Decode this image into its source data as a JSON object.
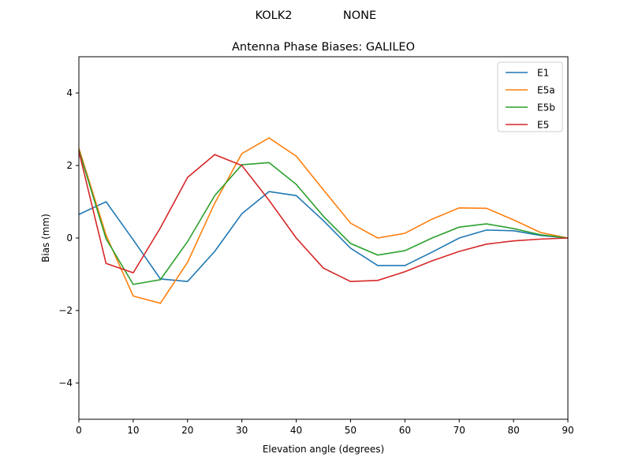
{
  "suptitle": {
    "station": "KOLK2",
    "radome": "NONE"
  },
  "chart_data": {
    "type": "line",
    "title": "Antenna Phase Biases: GALILEO",
    "xlabel": "Elevation angle (degrees)",
    "ylabel": "Bias (mm)",
    "xlim": [
      0,
      90
    ],
    "ylim": [
      -5,
      5
    ],
    "xticks": [
      "0",
      "10",
      "20",
      "30",
      "40",
      "50",
      "60",
      "70",
      "80",
      "90"
    ],
    "yticks": [
      "−4",
      "−2",
      "0",
      "2",
      "4"
    ],
    "grid": false,
    "legend_placement": "top-right",
    "x": [
      0,
      5,
      10,
      15,
      20,
      25,
      30,
      35,
      40,
      45,
      50,
      55,
      60,
      65,
      70,
      75,
      80,
      85,
      90
    ],
    "series": [
      {
        "name": "E1",
        "color": "#1f77b4",
        "values": [
          0.65,
          1.0,
          -0.05,
          -1.13,
          -1.2,
          -0.37,
          0.67,
          1.28,
          1.17,
          0.48,
          -0.28,
          -0.76,
          -0.76,
          -0.39,
          0.0,
          0.22,
          0.2,
          0.07,
          0.0
        ]
      },
      {
        "name": "E5a",
        "color": "#ff7f0e",
        "values": [
          2.48,
          0.08,
          -1.6,
          -1.8,
          -0.67,
          0.96,
          2.33,
          2.76,
          2.26,
          1.33,
          0.41,
          0.0,
          0.13,
          0.52,
          0.83,
          0.82,
          0.5,
          0.15,
          0.0
        ]
      },
      {
        "name": "E5b",
        "color": "#2ca02c",
        "values": [
          2.43,
          -0.02,
          -1.28,
          -1.15,
          -0.1,
          1.17,
          2.02,
          2.08,
          1.48,
          0.6,
          -0.15,
          -0.47,
          -0.35,
          0.0,
          0.3,
          0.39,
          0.26,
          0.09,
          0.0
        ]
      },
      {
        "name": "E5",
        "color": "#d62728",
        "values": [
          2.39,
          -0.7,
          -0.96,
          0.28,
          1.67,
          2.3,
          2.0,
          1.04,
          0.0,
          -0.83,
          -1.2,
          -1.17,
          -0.93,
          -0.63,
          -0.37,
          -0.17,
          -0.08,
          -0.03,
          0.0
        ]
      }
    ]
  }
}
